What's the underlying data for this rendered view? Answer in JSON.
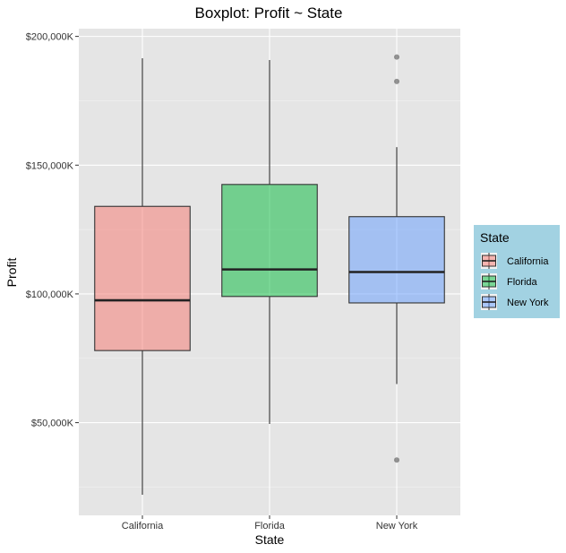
{
  "chart_data": {
    "type": "boxplot",
    "title": "Boxplot: Profit ~ State",
    "xlabel": "State",
    "ylabel": "Profit",
    "ylim": [
      14000,
      203000
    ],
    "y_ticks": [
      {
        "value": 50000,
        "label": "$50,000K"
      },
      {
        "value": 100000,
        "label": "$100,000K"
      },
      {
        "value": 150000,
        "label": "$150,000K"
      },
      {
        "value": 200000,
        "label": "$200,000K"
      }
    ],
    "categories": [
      "California",
      "Florida",
      "New York"
    ],
    "series": [
      {
        "name": "California",
        "color": "#F8766D",
        "whisker_low": 22000,
        "q1": 78000,
        "median": 97500,
        "q3": 134000,
        "whisker_high": 191500,
        "outliers": []
      },
      {
        "name": "Florida",
        "color": "#00BA38",
        "whisker_low": 49500,
        "q1": 99000,
        "median": 109500,
        "q3": 142500,
        "whisker_high": 190800,
        "outliers": []
      },
      {
        "name": "New York",
        "color": "#619CFF",
        "whisker_low": 65000,
        "q1": 96500,
        "median": 108500,
        "q3": 130000,
        "whisker_high": 157000,
        "outliers": [
          35500,
          182500,
          192000
        ]
      }
    ],
    "grid": true,
    "legend": {
      "title": "State",
      "position": "right",
      "background": "#A2D2E2",
      "entries": [
        "California",
        "Florida",
        "New York"
      ]
    }
  }
}
